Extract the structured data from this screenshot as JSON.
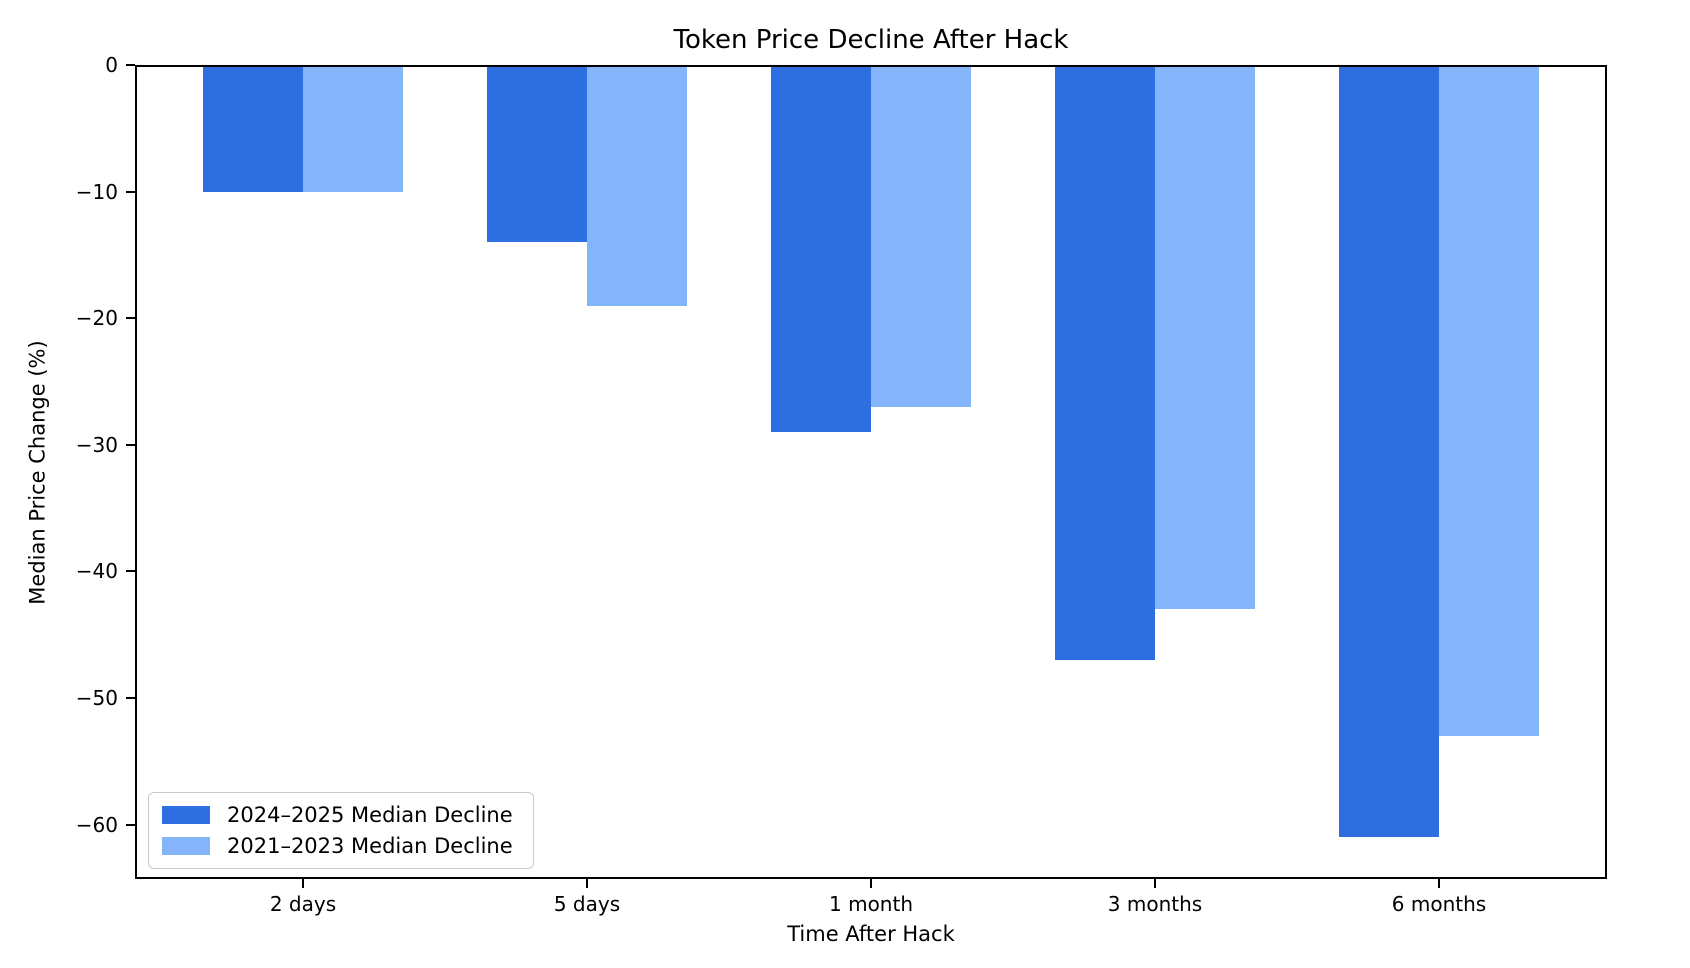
{
  "chart_data": {
    "type": "bar",
    "title": "Token Price Decline After Hack",
    "xlabel": "Time After Hack",
    "ylabel": "Median Price Change (%)",
    "categories": [
      "2 days",
      "5 days",
      "1 month",
      "3 months",
      "6 months"
    ],
    "series": [
      {
        "name": "2024–2025 Median Decline",
        "color": "#2d6fe1",
        "values": [
          -10,
          -14,
          -29,
          -47,
          -61
        ]
      },
      {
        "name": "2021–2023 Median Decline",
        "color": "#84b4f9",
        "values": [
          -10,
          -19,
          -27,
          -43,
          -53
        ]
      }
    ],
    "yticks": [
      0,
      -10,
      -20,
      -30,
      -40,
      -50,
      -60
    ],
    "ylim": [
      -64,
      0
    ],
    "legend_position": "lower left",
    "grid": false,
    "background": "#ffffff",
    "spine_color": "#000000",
    "text_color": "#000000"
  }
}
